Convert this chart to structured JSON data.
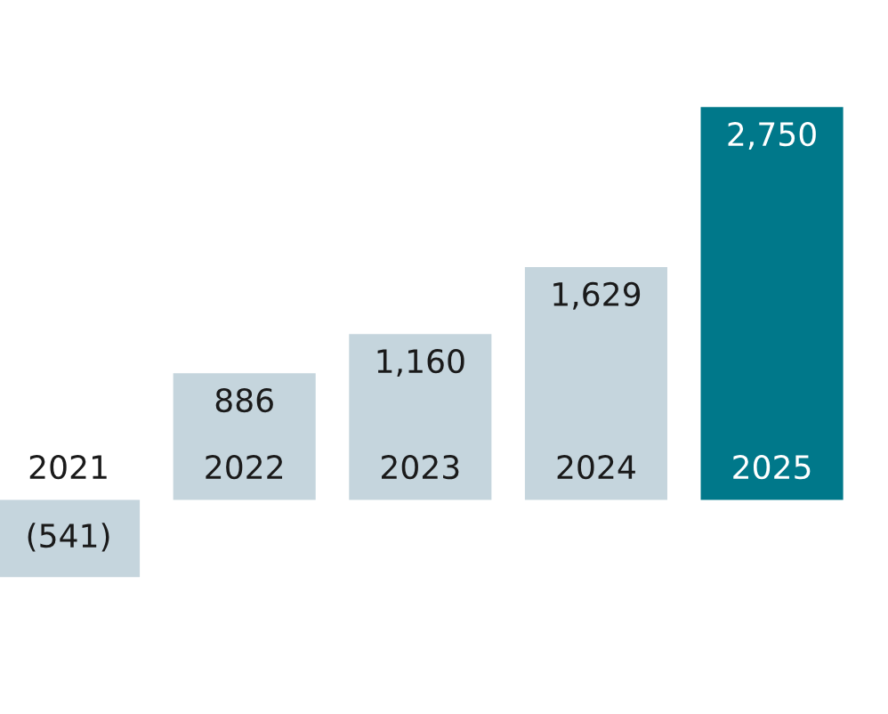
{
  "chart_data": {
    "type": "bar",
    "categories": [
      "2021",
      "2022",
      "2023",
      "2024",
      "2025"
    ],
    "values": [
      -541,
      886,
      1160,
      1629,
      2750
    ],
    "value_labels": [
      "(541)",
      "886",
      "1,160",
      "1,629",
      "2,750"
    ],
    "colors": [
      "#c5d5dd",
      "#c5d5dd",
      "#c5d5dd",
      "#c5d5dd",
      "#00788a"
    ],
    "ylim": [
      -1500,
      3500
    ],
    "tick_labels": false
  }
}
